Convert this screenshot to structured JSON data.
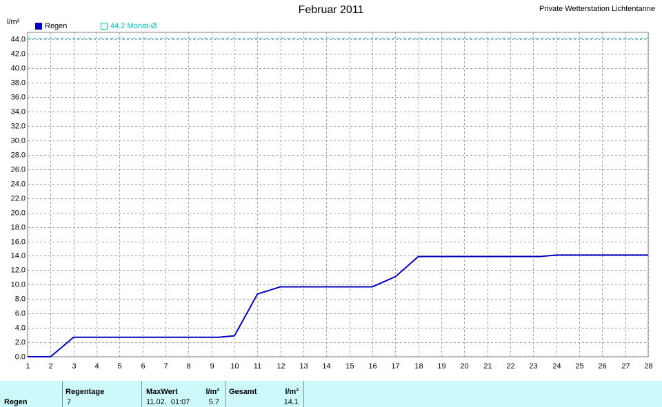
{
  "chart_data": {
    "type": "line",
    "title": "Februar 2011",
    "source": "Private Wetterstation Lichtentanne",
    "y_label": "l/m²",
    "x": [
      1,
      2,
      3,
      9.3,
      10,
      11,
      12,
      16,
      17,
      18,
      23.3,
      24,
      28
    ],
    "series": [
      {
        "name": "Regen",
        "color": "#0000c0",
        "values": [
          0,
          0,
          2.7,
          2.7,
          2.9,
          8.7,
          9.7,
          9.7,
          11.1,
          13.9,
          13.9,
          14.1,
          14.1
        ]
      }
    ],
    "reference": {
      "label": "44.2 Monat-Ø",
      "value": 44.2,
      "color": "#00c0c0"
    },
    "xlim": [
      1,
      28
    ],
    "xticks": [
      1,
      2,
      3,
      4,
      5,
      6,
      7,
      8,
      9,
      10,
      11,
      12,
      13,
      14,
      15,
      16,
      17,
      18,
      19,
      20,
      21,
      22,
      23,
      24,
      25,
      26,
      27,
      28
    ],
    "ylim": [
      0,
      45
    ],
    "yticks": [
      {
        "value": 0,
        "label": "0.0"
      },
      {
        "value": 2,
        "label": "2.0"
      },
      {
        "value": 4,
        "label": "4.0"
      },
      {
        "value": 6,
        "label": "6.0"
      },
      {
        "value": 8,
        "label": "8.0"
      },
      {
        "value": 10,
        "label": "10.0"
      },
      {
        "value": 12,
        "label": "12.0"
      },
      {
        "value": 14,
        "label": "14.0"
      },
      {
        "value": 16,
        "label": "16.0"
      },
      {
        "value": 18,
        "label": "18.0"
      },
      {
        "value": 20,
        "label": "20.0"
      },
      {
        "value": 22,
        "label": "22.0"
      },
      {
        "value": 24,
        "label": "24.0"
      },
      {
        "value": 26,
        "label": "26.0"
      },
      {
        "value": 28,
        "label": "28.0"
      },
      {
        "value": 30,
        "label": "30.0"
      },
      {
        "value": 32,
        "label": "32.0"
      },
      {
        "value": 34,
        "label": "34.0"
      },
      {
        "value": 36,
        "label": "36.0"
      },
      {
        "value": 38,
        "label": "38.0"
      },
      {
        "value": 40,
        "label": "40.0"
      },
      {
        "value": 42,
        "label": "42.0"
      },
      {
        "value": 44,
        "label": "44.0"
      }
    ],
    "grid": true
  },
  "table": {
    "headers": [
      "Regentage",
      "MaxWert",
      "l/m²",
      "Gesamt",
      "l/m²"
    ],
    "row": [
      "Regen",
      7,
      "11.02.  01:07",
      5.7,
      14.1
    ]
  }
}
